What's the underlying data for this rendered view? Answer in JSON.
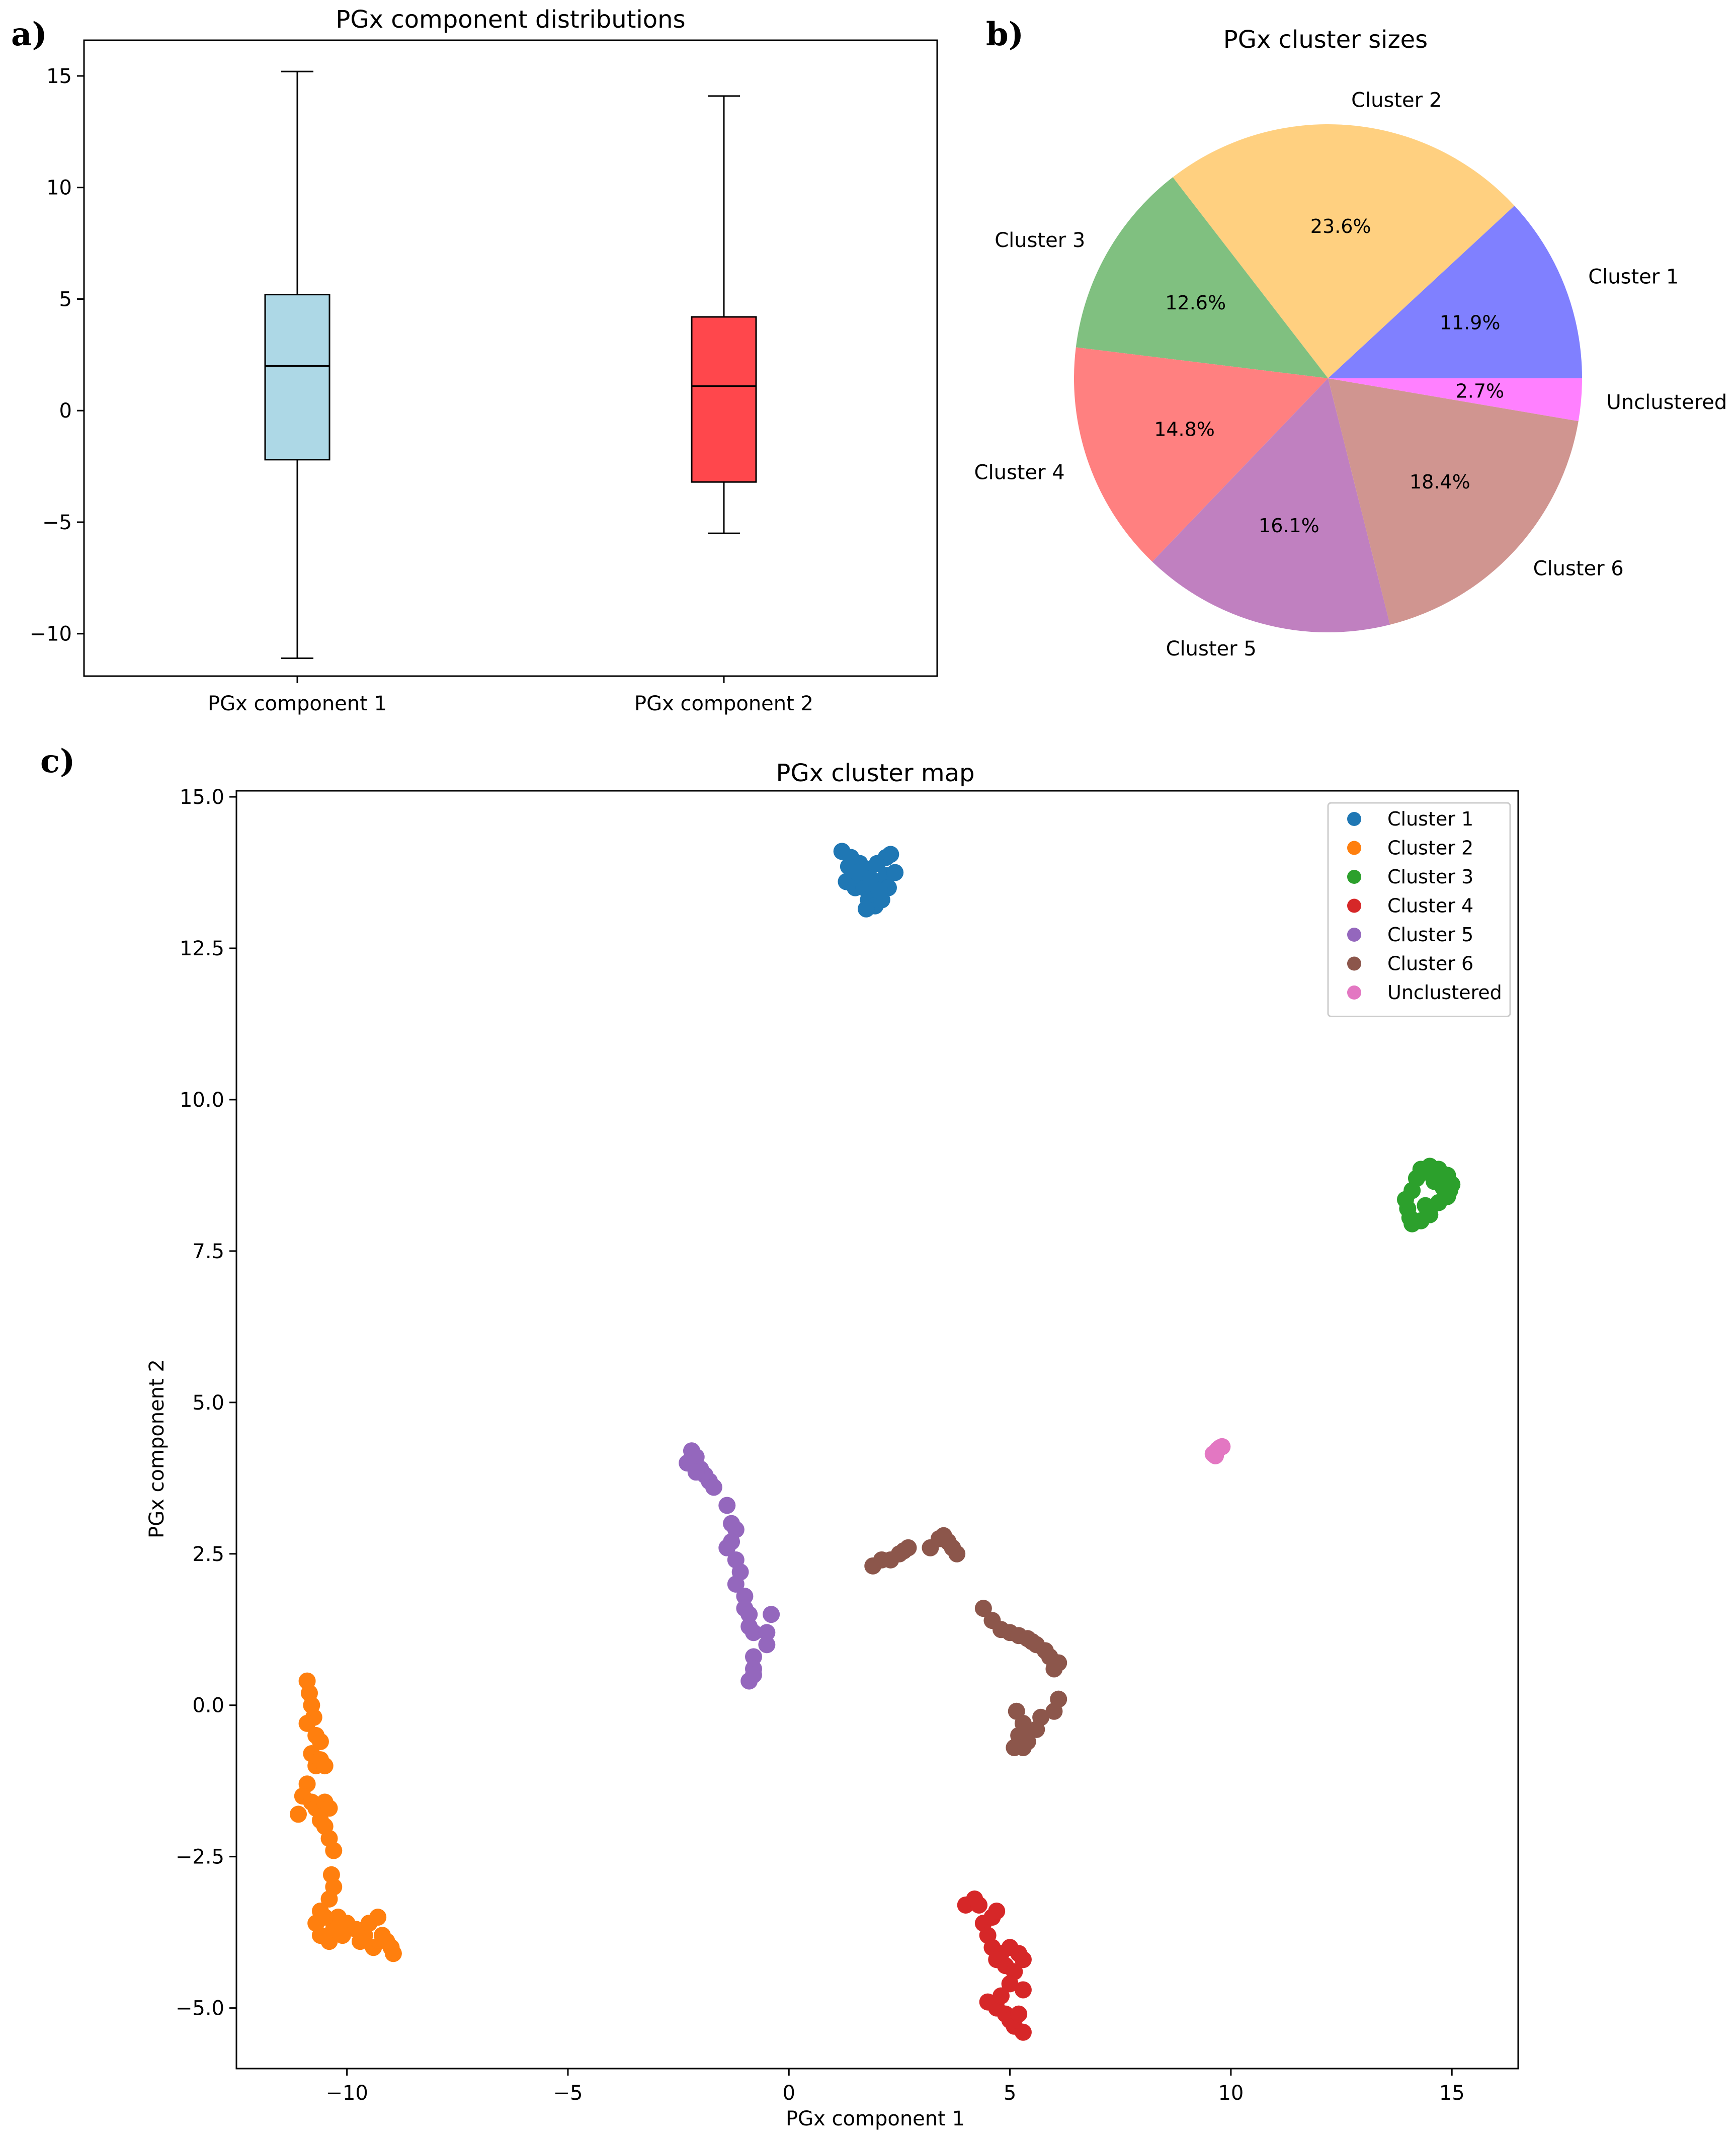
{
  "panel_labels": [
    "a)",
    "b)",
    "c)"
  ],
  "chart_data": [
    {
      "type": "box",
      "title": "PGx component distributions",
      "categories": [
        "PGx component 1",
        "PGx component 2"
      ],
      "boxes": [
        {
          "name": "PGx component 1",
          "whisker_low": -11.1,
          "q1": -2.2,
          "median": 2.0,
          "q3": 5.2,
          "whisker_high": 15.2,
          "color": "#add8e6"
        },
        {
          "name": "PGx component 2",
          "whisker_low": -5.5,
          "q1": -3.2,
          "median": 1.1,
          "q3": 4.2,
          "whisker_high": 14.1,
          "color": "#ff474c"
        }
      ],
      "ylim": [
        -11.9,
        16.6
      ],
      "yticks": [
        -10,
        -5,
        0,
        5,
        10,
        15
      ],
      "ytick_labels": [
        "−10",
        "−5",
        "0",
        "5",
        "10",
        "15"
      ],
      "grid": false
    },
    {
      "type": "pie",
      "title": "PGx cluster sizes",
      "slices": [
        {
          "label": "Cluster 1",
          "value": 11.9,
          "pct_label": "11.9%",
          "color": "#8080ff"
        },
        {
          "label": "Cluster 2",
          "value": 23.6,
          "pct_label": "23.6%",
          "color": "#ffd080"
        },
        {
          "label": "Cluster 3",
          "value": 12.6,
          "pct_label": "12.6%",
          "color": "#80c080"
        },
        {
          "label": "Cluster 4",
          "value": 14.8,
          "pct_label": "14.8%",
          "color": "#ff8080"
        },
        {
          "label": "Cluster 5",
          "value": 16.1,
          "pct_label": "16.1%",
          "color": "#c080c0"
        },
        {
          "label": "Cluster 6",
          "value": 18.4,
          "pct_label": "18.4%",
          "color": "#d09590"
        },
        {
          "label": "Unclustered",
          "value": 2.7,
          "pct_label": "2.7%",
          "color": "#ff80ff"
        }
      ],
      "start_angle_deg": 0,
      "direction": "counterclockwise"
    },
    {
      "type": "scatter",
      "title": "PGx cluster map",
      "xlabel": "PGx component 1",
      "ylabel": "PGx component 2",
      "xlim": [
        -12.5,
        16.5
      ],
      "ylim": [
        -6.0,
        15.1
      ],
      "xticks": [
        -10,
        -5,
        0,
        5,
        10,
        15
      ],
      "xtick_labels": [
        "−10",
        "−5",
        "0",
        "5",
        "10",
        "15"
      ],
      "yticks": [
        -5.0,
        -2.5,
        0.0,
        2.5,
        5.0,
        7.5,
        10.0,
        12.5,
        15.0
      ],
      "ytick_labels": [
        "−5.0",
        "−2.5",
        "0.0",
        "2.5",
        "5.0",
        "7.5",
        "10.0",
        "12.5",
        "15.0"
      ],
      "legend_position": "top-right",
      "grid": false,
      "series": [
        {
          "name": "Cluster 1",
          "color": "#1f77b4",
          "points": [
            [
              1.2,
              14.1
            ],
            [
              1.4,
              14.0
            ],
            [
              1.6,
              13.9
            ],
            [
              1.8,
              13.8
            ],
            [
              2.0,
              13.9
            ],
            [
              2.2,
              14.0
            ],
            [
              2.3,
              14.05
            ],
            [
              1.3,
              13.6
            ],
            [
              1.5,
              13.5
            ],
            [
              1.7,
              13.5
            ],
            [
              2.0,
              13.6
            ],
            [
              2.2,
              13.7
            ],
            [
              2.4,
              13.75
            ],
            [
              1.9,
              13.4
            ],
            [
              1.8,
              13.3
            ],
            [
              1.95,
              13.2
            ],
            [
              1.75,
              13.15
            ],
            [
              2.1,
              13.3
            ],
            [
              1.6,
              13.7
            ],
            [
              2.25,
              13.5
            ],
            [
              1.35,
              13.85
            ],
            [
              1.55,
              13.75
            ],
            [
              1.85,
              13.65
            ],
            [
              2.05,
              13.45
            ]
          ]
        },
        {
          "name": "Cluster 2",
          "color": "#ff7f0e",
          "points": [
            [
              -10.9,
              0.4
            ],
            [
              -10.85,
              0.2
            ],
            [
              -10.8,
              0.0
            ],
            [
              -10.75,
              -0.2
            ],
            [
              -10.9,
              -0.3
            ],
            [
              -10.7,
              -0.5
            ],
            [
              -10.6,
              -0.6
            ],
            [
              -10.8,
              -0.8
            ],
            [
              -10.7,
              -1.0
            ],
            [
              -10.6,
              -0.9
            ],
            [
              -10.5,
              -1.0
            ],
            [
              -10.9,
              -1.3
            ],
            [
              -11.0,
              -1.5
            ],
            [
              -10.8,
              -1.6
            ],
            [
              -10.7,
              -1.7
            ],
            [
              -10.5,
              -1.6
            ],
            [
              -10.4,
              -1.7
            ],
            [
              -10.6,
              -1.9
            ],
            [
              -11.1,
              -1.8
            ],
            [
              -10.5,
              -2.0
            ],
            [
              -10.4,
              -2.2
            ],
            [
              -10.3,
              -2.4
            ],
            [
              -10.35,
              -2.8
            ],
            [
              -10.3,
              -3.0
            ],
            [
              -10.4,
              -3.2
            ],
            [
              -10.6,
              -3.4
            ],
            [
              -10.7,
              -3.6
            ],
            [
              -10.6,
              -3.8
            ],
            [
              -10.4,
              -3.9
            ],
            [
              -10.2,
              -3.5
            ],
            [
              -10.0,
              -3.6
            ],
            [
              -9.8,
              -3.7
            ],
            [
              -9.6,
              -3.8
            ],
            [
              -9.5,
              -3.6
            ],
            [
              -9.3,
              -3.5
            ],
            [
              -9.2,
              -3.8
            ],
            [
              -9.1,
              -3.9
            ],
            [
              -9.0,
              -4.0
            ],
            [
              -8.95,
              -4.1
            ],
            [
              -9.4,
              -4.0
            ],
            [
              -9.7,
              -3.9
            ],
            [
              -10.1,
              -3.8
            ],
            [
              -10.3,
              -3.7
            ],
            [
              -10.5,
              -3.5
            ]
          ]
        },
        {
          "name": "Cluster 3",
          "color": "#2ca02c",
          "points": [
            [
              14.0,
              8.2
            ],
            [
              14.1,
              8.5
            ],
            [
              14.2,
              8.7
            ],
            [
              14.3,
              8.85
            ],
            [
              14.5,
              8.9
            ],
            [
              14.7,
              8.85
            ],
            [
              14.9,
              8.75
            ],
            [
              15.0,
              8.6
            ],
            [
              14.9,
              8.4
            ],
            [
              14.7,
              8.3
            ],
            [
              14.5,
              8.1
            ],
            [
              14.3,
              8.0
            ],
            [
              14.1,
              7.95
            ],
            [
              13.95,
              8.35
            ],
            [
              14.8,
              8.55
            ],
            [
              14.6,
              8.65
            ],
            [
              14.4,
              8.25
            ],
            [
              14.05,
              8.05
            ],
            [
              14.95,
              8.5
            ],
            [
              14.35,
              8.8
            ]
          ]
        },
        {
          "name": "Cluster 4",
          "color": "#d62728",
          "points": [
            [
              4.0,
              -3.3
            ],
            [
              4.2,
              -3.2
            ],
            [
              4.3,
              -3.3
            ],
            [
              4.4,
              -3.6
            ],
            [
              4.5,
              -3.8
            ],
            [
              4.6,
              -3.5
            ],
            [
              4.7,
              -3.4
            ],
            [
              4.6,
              -4.0
            ],
            [
              4.8,
              -4.1
            ],
            [
              5.0,
              -4.0
            ],
            [
              5.2,
              -4.1
            ],
            [
              5.3,
              -4.2
            ],
            [
              4.9,
              -4.3
            ],
            [
              5.1,
              -4.4
            ],
            [
              4.7,
              -4.2
            ],
            [
              5.3,
              -4.7
            ],
            [
              5.0,
              -4.6
            ],
            [
              4.5,
              -4.9
            ],
            [
              4.7,
              -5.0
            ],
            [
              4.9,
              -5.1
            ],
            [
              5.0,
              -5.2
            ],
            [
              5.1,
              -5.3
            ],
            [
              5.3,
              -5.4
            ],
            [
              5.2,
              -5.1
            ],
            [
              4.8,
              -4.8
            ]
          ]
        },
        {
          "name": "Cluster 5",
          "color": "#9467bd",
          "points": [
            [
              -2.2,
              4.2
            ],
            [
              -2.1,
              4.1
            ],
            [
              -2.3,
              4.0
            ],
            [
              -2.0,
              3.9
            ],
            [
              -1.9,
              3.8
            ],
            [
              -1.8,
              3.7
            ],
            [
              -2.1,
              3.85
            ],
            [
              -1.7,
              3.6
            ],
            [
              -1.4,
              3.3
            ],
            [
              -1.3,
              3.0
            ],
            [
              -1.2,
              2.9
            ],
            [
              -1.3,
              2.7
            ],
            [
              -1.4,
              2.6
            ],
            [
              -1.2,
              2.4
            ],
            [
              -1.1,
              2.2
            ],
            [
              -1.2,
              2.0
            ],
            [
              -1.0,
              1.8
            ],
            [
              -1.0,
              1.6
            ],
            [
              -0.9,
              1.5
            ],
            [
              -0.9,
              1.3
            ],
            [
              -0.8,
              1.2
            ],
            [
              -0.4,
              1.5
            ],
            [
              -0.5,
              1.2
            ],
            [
              -0.5,
              1.0
            ],
            [
              -0.8,
              0.8
            ],
            [
              -0.8,
              0.6
            ],
            [
              -0.9,
              0.4
            ],
            [
              -0.8,
              0.5
            ]
          ]
        },
        {
          "name": "Cluster 6",
          "color": "#8c564b",
          "points": [
            [
              1.9,
              2.3
            ],
            [
              2.1,
              2.4
            ],
            [
              2.3,
              2.4
            ],
            [
              2.5,
              2.5
            ],
            [
              2.7,
              2.6
            ],
            [
              2.6,
              2.55
            ],
            [
              3.2,
              2.6
            ],
            [
              3.4,
              2.75
            ],
            [
              3.5,
              2.8
            ],
            [
              3.6,
              2.7
            ],
            [
              3.7,
              2.6
            ],
            [
              3.8,
              2.5
            ],
            [
              4.4,
              1.6
            ],
            [
              4.6,
              1.4
            ],
            [
              4.8,
              1.25
            ],
            [
              5.0,
              1.2
            ],
            [
              5.2,
              1.15
            ],
            [
              5.4,
              1.1
            ],
            [
              5.6,
              1.0
            ],
            [
              5.8,
              0.9
            ],
            [
              5.9,
              0.8
            ],
            [
              6.1,
              0.7
            ],
            [
              6.0,
              0.6
            ],
            [
              5.5,
              1.05
            ],
            [
              6.1,
              0.1
            ],
            [
              6.0,
              -0.1
            ],
            [
              5.7,
              -0.2
            ],
            [
              5.6,
              -0.4
            ],
            [
              5.4,
              -0.6
            ],
            [
              5.3,
              -0.7
            ],
            [
              5.1,
              -0.7
            ],
            [
              5.2,
              -0.5
            ],
            [
              5.3,
              -0.3
            ],
            [
              5.15,
              -0.1
            ],
            [
              5.35,
              -0.45
            ]
          ]
        },
        {
          "name": "Unclustered",
          "color": "#e377c2",
          "points": [
            [
              9.6,
              4.15
            ],
            [
              9.7,
              4.22
            ],
            [
              9.8,
              4.27
            ],
            [
              9.65,
              4.12
            ],
            [
              9.75,
              4.25
            ]
          ]
        }
      ]
    }
  ]
}
